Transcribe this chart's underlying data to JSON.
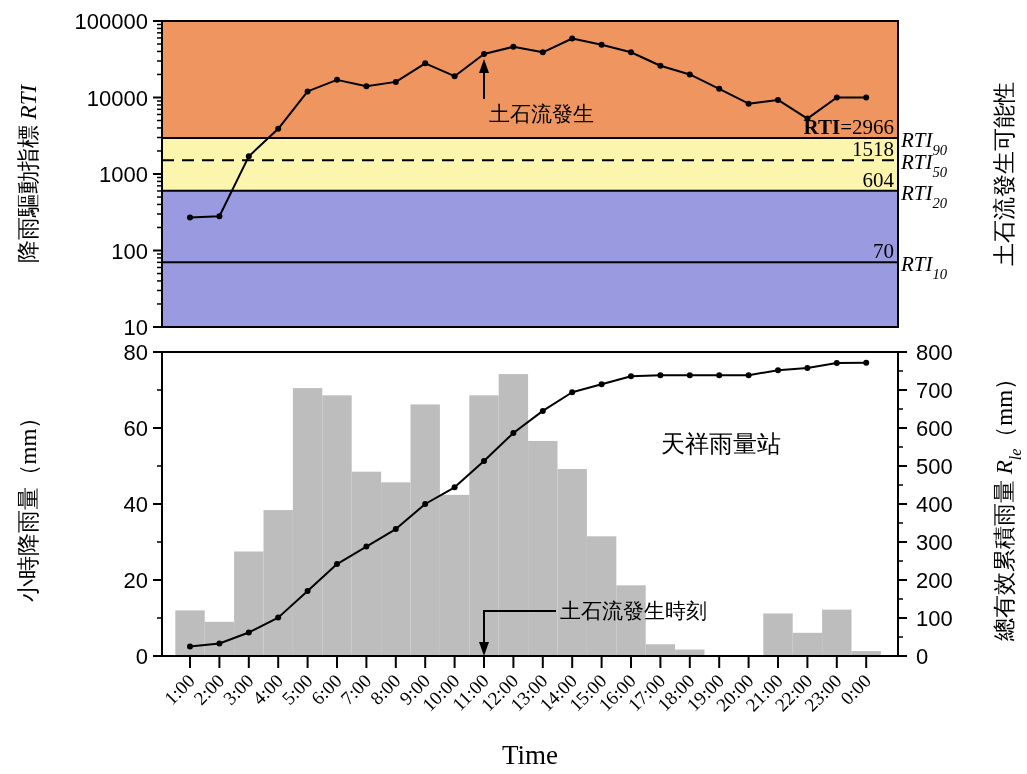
{
  "chart_data": [
    {
      "type": "line",
      "ylabel": "降雨驅動指標 *RTI*",
      "y2label": "土石流發生可能性",
      "categories": [
        null,
        null,
        null,
        null,
        null,
        null,
        null,
        null,
        null,
        null,
        null,
        null,
        null,
        null,
        null,
        null,
        null,
        null,
        null,
        null,
        null,
        null,
        null,
        null
      ],
      "tick_labels": "y",
      "log": "y",
      "ylim": [
        10,
        100000
      ],
      "yticks": [
        10,
        100,
        1000,
        10000,
        100000
      ],
      "marker": "circle",
      "line_style": "solid",
      "series": [
        {
          "color": "#000000",
          "values": [
            270,
            280,
            1700,
            3900,
            12000,
            17000,
            14000,
            16000,
            28000,
            19000,
            37000,
            46000,
            39000,
            59000,
            49000,
            39000,
            26000,
            20000,
            13000,
            8300,
            9300,
            5300,
            10000,
            10000
          ]
        }
      ],
      "bands": [
        {
          "axis": "y",
          "from": 10,
          "to": 604,
          "color": "#9a9ae0"
        },
        {
          "axis": "y",
          "from": 604,
          "to": 2966,
          "color": "#fbf5ad"
        },
        {
          "axis": "y",
          "from": 2966,
          "to": 100000,
          "color": "#ef9560"
        }
      ],
      "ref_lines": [
        {
          "axis": "y",
          "value": 2966,
          "label": "*RTI*$_{90}$",
          "line_style": "solid"
        },
        {
          "axis": "y",
          "value": 1518,
          "label": "*RTI*$_{50}$",
          "line_style": "dashed"
        },
        {
          "axis": "y",
          "value": 604,
          "label": "*RTI*$_{20}$",
          "line_style": "solid"
        },
        {
          "axis": "y",
          "value": 70,
          "label": "*RTI*$_{10}$",
          "line_style": "solid"
        }
      ],
      "annotations": [
        {
          "text": "**RTI**=2966",
          "y": 2966
        },
        {
          "text": "1518",
          "y": 1518
        },
        {
          "text": "604",
          "y": 604
        },
        {
          "text": "70",
          "y": 70
        },
        "土石流發生"
      ]
    },
    {
      "type": "bar",
      "xlabel": "Time",
      "ylabel": "小時降雨量（mm）",
      "y2label": "總有效累積雨量 *R*$_{le}$（mm）",
      "categories": [
        "1:00",
        "2:00",
        "3:00",
        "4:00",
        "5:00",
        "6:00",
        "7:00",
        "8:00",
        "9:00",
        "10:00",
        "11:00",
        "12:00",
        "13:00",
        "14:00",
        "15:00",
        "16:00",
        "17:00",
        "18:00",
        "19:00",
        "20:00",
        "21:00",
        "22:00",
        "23:00",
        "0:00"
      ],
      "ylim": [
        0,
        80
      ],
      "yticks": [
        0,
        20,
        40,
        60,
        80
      ],
      "y2lim": [
        0,
        800
      ],
      "y2ticks": [
        0,
        100,
        200,
        300,
        400,
        500,
        600,
        700,
        800
      ],
      "marker": "circle",
      "series": [
        {
          "color": "#bdbdbd",
          "values": [
            12,
            9,
            27.5,
            38.4,
            70.5,
            68.6,
            48.5,
            45.7,
            66.2,
            42.4,
            68.6,
            74.2,
            56.6,
            49.2,
            31.5,
            18.6,
            3.1,
            1.7,
            0,
            0,
            11.2,
            6.1,
            12.2,
            1.3
          ]
        },
        {
          "type": "line",
          "axis": "y2",
          "color": "#000000",
          "values": [
            25,
            33,
            62,
            101,
            171,
            242,
            288,
            334,
            400,
            444,
            513,
            587,
            645,
            694,
            715,
            736,
            739,
            739,
            739,
            739,
            752,
            758,
            771,
            772
          ]
        }
      ],
      "annotations": [
        "天祥雨量站",
        "土石流發生時刻"
      ]
    }
  ]
}
